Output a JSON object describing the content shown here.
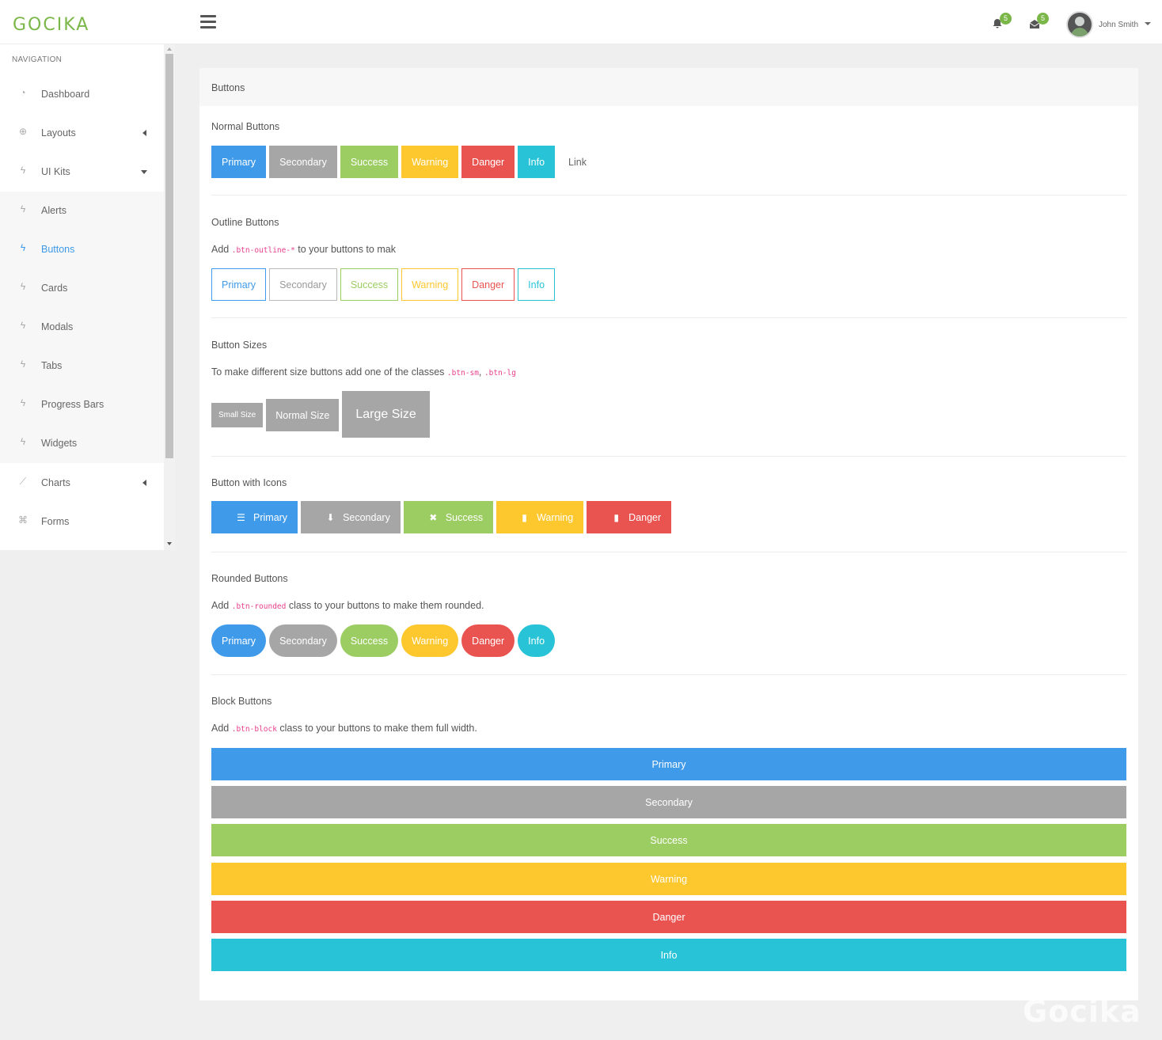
{
  "brand": {
    "logo": "GOCIKA",
    "watermark": "Gocika"
  },
  "topbar": {
    "notifications_count": "5",
    "messages_count": "5",
    "user_name": "John Smith"
  },
  "sidebar": {
    "title": "NAVIGATION",
    "items": [
      {
        "label": "Dashboard",
        "icon": "dashboard-icon"
      },
      {
        "label": "Layouts",
        "icon": "layouts-icon"
      },
      {
        "label": "UI Kits",
        "icon": "bolt-icon"
      },
      {
        "label": "Alerts",
        "icon": "bolt-icon"
      },
      {
        "label": "Buttons",
        "icon": "bolt-icon"
      },
      {
        "label": "Cards",
        "icon": "bolt-icon"
      },
      {
        "label": "Modals",
        "icon": "bolt-icon"
      },
      {
        "label": "Tabs",
        "icon": "bolt-icon"
      },
      {
        "label": "Progress Bars",
        "icon": "bolt-icon"
      },
      {
        "label": "Widgets",
        "icon": "bolt-icon"
      },
      {
        "label": "Charts",
        "icon": "chart-line-icon"
      },
      {
        "label": "Forms",
        "icon": "forms-icon"
      }
    ]
  },
  "colors": {
    "primary": "#3f9ae9",
    "secondary": "#a6a6a6",
    "success": "#9ccd62",
    "warning": "#fdc72e",
    "danger": "#e95451",
    "info": "#28c3d7",
    "brand": "#7ab648"
  },
  "card": {
    "title": "Buttons",
    "normal": {
      "title": "Normal Buttons",
      "buttons": [
        "Primary",
        "Secondary",
        "Success",
        "Warning",
        "Danger",
        "Info",
        "Link"
      ]
    },
    "outline": {
      "title": "Outline Buttons",
      "desc_pre": "Add ",
      "desc_code": ".btn-outline-*",
      "desc_post": " to your buttons to mak",
      "buttons": [
        "Primary",
        "Secondary",
        "Success",
        "Warning",
        "Danger",
        "Info"
      ]
    },
    "sizes": {
      "title": "Button Sizes",
      "desc_pre": "To make different size buttons add one of the classes ",
      "desc_code1": ".btn-sm",
      "desc_sep": ", ",
      "desc_code2": ".btn-lg",
      "buttons": [
        "Small Size",
        "Normal Size",
        "Large Size"
      ]
    },
    "icons": {
      "title": "Button with Icons",
      "buttons": [
        {
          "label": "Primary",
          "icon": "align-center-icon",
          "glyph": "☰"
        },
        {
          "label": "Secondary",
          "icon": "download-icon",
          "glyph": "⬇"
        },
        {
          "label": "Success",
          "icon": "close-icon",
          "glyph": "✖"
        },
        {
          "label": "Warning",
          "icon": "clipboard-icon",
          "glyph": "▮"
        },
        {
          "label": "Danger",
          "icon": "trash-icon",
          "glyph": "▮"
        }
      ]
    },
    "rounded": {
      "title": "Rounded Buttons",
      "desc_pre": "Add ",
      "desc_code": ".btn-rounded",
      "desc_post": " class to your buttons to make them rounded.",
      "buttons": [
        "Primary",
        "Secondary",
        "Success",
        "Warning",
        "Danger",
        "Info"
      ]
    },
    "block": {
      "title": "Block Buttons",
      "desc_pre": "Add ",
      "desc_code": ".btn-block",
      "desc_post": " class to your buttons to make them full width.",
      "buttons": [
        "Primary",
        "Secondary",
        "Success",
        "Warning",
        "Danger",
        "Info"
      ]
    }
  }
}
